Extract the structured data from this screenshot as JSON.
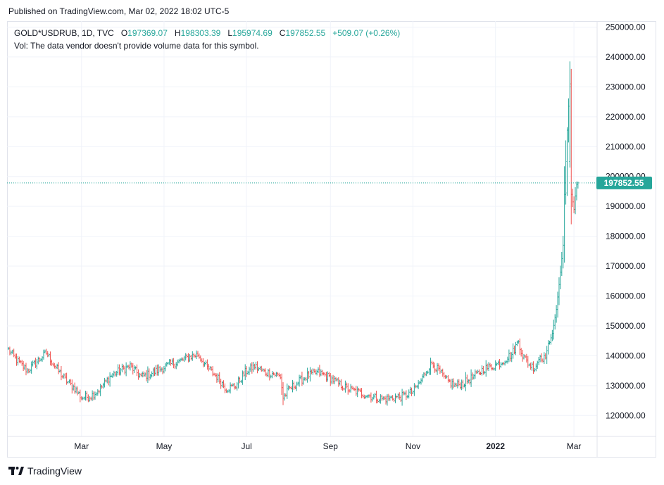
{
  "header": {
    "published": "Published on TradingView.com, Mar 02, 2022 18:02 UTC-5"
  },
  "legend": {
    "symbol": "GOLD*USDRUB, 1D, TVC",
    "o_label": "O",
    "o_value": "197369.07",
    "h_label": "H",
    "h_value": "198303.39",
    "l_label": "L",
    "l_value": "195974.69",
    "c_label": "C",
    "c_value": "197852.55",
    "change": "+509.07 (+0.26%)",
    "vol_note": "Vol: The data vendor doesn't provide volume data for this symbol."
  },
  "price_label": "197852.55",
  "footer": {
    "brand": "TradingView"
  },
  "colors": {
    "up": "#26a69a",
    "down": "#ef5350",
    "grid": "#f0f3fa",
    "axis": "#e0e3eb"
  },
  "chart_data": {
    "type": "ohlc",
    "symbol": "GOLD*USDRUB",
    "interval": "1D",
    "ylim": [
      113000,
      252000
    ],
    "y_ticks": [
      "250000.00",
      "240000.00",
      "230000.00",
      "220000.00",
      "210000.00",
      "200000.00",
      "190000.00",
      "180000.00",
      "170000.00",
      "160000.00",
      "150000.00",
      "140000.00",
      "130000.00",
      "120000.00"
    ],
    "x_ticks": [
      {
        "label": "Mar",
        "day": 54
      },
      {
        "label": "May",
        "day": 115
      },
      {
        "label": "Jul",
        "day": 176
      },
      {
        "label": "Sep",
        "day": 238
      },
      {
        "label": "Nov",
        "day": 299
      },
      {
        "label": "2022",
        "day": 360,
        "bold": true
      },
      {
        "label": "Mar",
        "day": 418
      }
    ],
    "x_domain": [
      0,
      432
    ],
    "last_close": 197852.55,
    "control_points": [
      [
        0,
        142000
      ],
      [
        7,
        138000
      ],
      [
        14,
        135000
      ],
      [
        21,
        138000
      ],
      [
        28,
        141000
      ],
      [
        35,
        136000
      ],
      [
        42,
        132000
      ],
      [
        49,
        129000
      ],
      [
        54,
        126000
      ],
      [
        61,
        126500
      ],
      [
        68,
        129000
      ],
      [
        75,
        133000
      ],
      [
        82,
        135000
      ],
      [
        90,
        136500
      ],
      [
        98,
        133000
      ],
      [
        105,
        134000
      ],
      [
        112,
        135500
      ],
      [
        119,
        137000
      ],
      [
        126,
        138000
      ],
      [
        133,
        139500
      ],
      [
        140,
        140500
      ],
      [
        147,
        136000
      ],
      [
        154,
        133000
      ],
      [
        161,
        129000
      ],
      [
        168,
        130000
      ],
      [
        175,
        134500
      ],
      [
        182,
        136500
      ],
      [
        189,
        134500
      ],
      [
        196,
        134000
      ],
      [
        201,
        133000
      ],
      [
        203,
        126000
      ],
      [
        208,
        129000
      ],
      [
        215,
        131500
      ],
      [
        222,
        133500
      ],
      [
        229,
        134500
      ],
      [
        236,
        133000
      ],
      [
        243,
        131000
      ],
      [
        250,
        129000
      ],
      [
        257,
        128000
      ],
      [
        264,
        127000
      ],
      [
        271,
        126000
      ],
      [
        278,
        125500
      ],
      [
        285,
        126000
      ],
      [
        292,
        126500
      ],
      [
        299,
        128000
      ],
      [
        304,
        131000
      ],
      [
        309,
        135000
      ],
      [
        313,
        137500
      ],
      [
        318,
        135000
      ],
      [
        323,
        132000
      ],
      [
        330,
        130000
      ],
      [
        337,
        131000
      ],
      [
        344,
        133000
      ],
      [
        351,
        135500
      ],
      [
        358,
        136500
      ],
      [
        365,
        138000
      ],
      [
        372,
        140500
      ],
      [
        377,
        145000
      ],
      [
        380,
        140000
      ],
      [
        385,
        137000
      ],
      [
        389,
        136000
      ],
      [
        393,
        140000
      ],
      [
        396,
        139000
      ],
      [
        399,
        143000
      ],
      [
        402,
        147500
      ],
      [
        405,
        155500
      ],
      [
        408,
        168000
      ],
      [
        410,
        177000
      ],
      [
        411,
        194000
      ],
      [
        413,
        216000
      ],
      [
        415,
        231000
      ],
      [
        416,
        194000
      ],
      [
        418,
        189000
      ],
      [
        419,
        193500
      ],
      [
        420,
        197369
      ],
      [
        421,
        197853
      ]
    ]
  }
}
